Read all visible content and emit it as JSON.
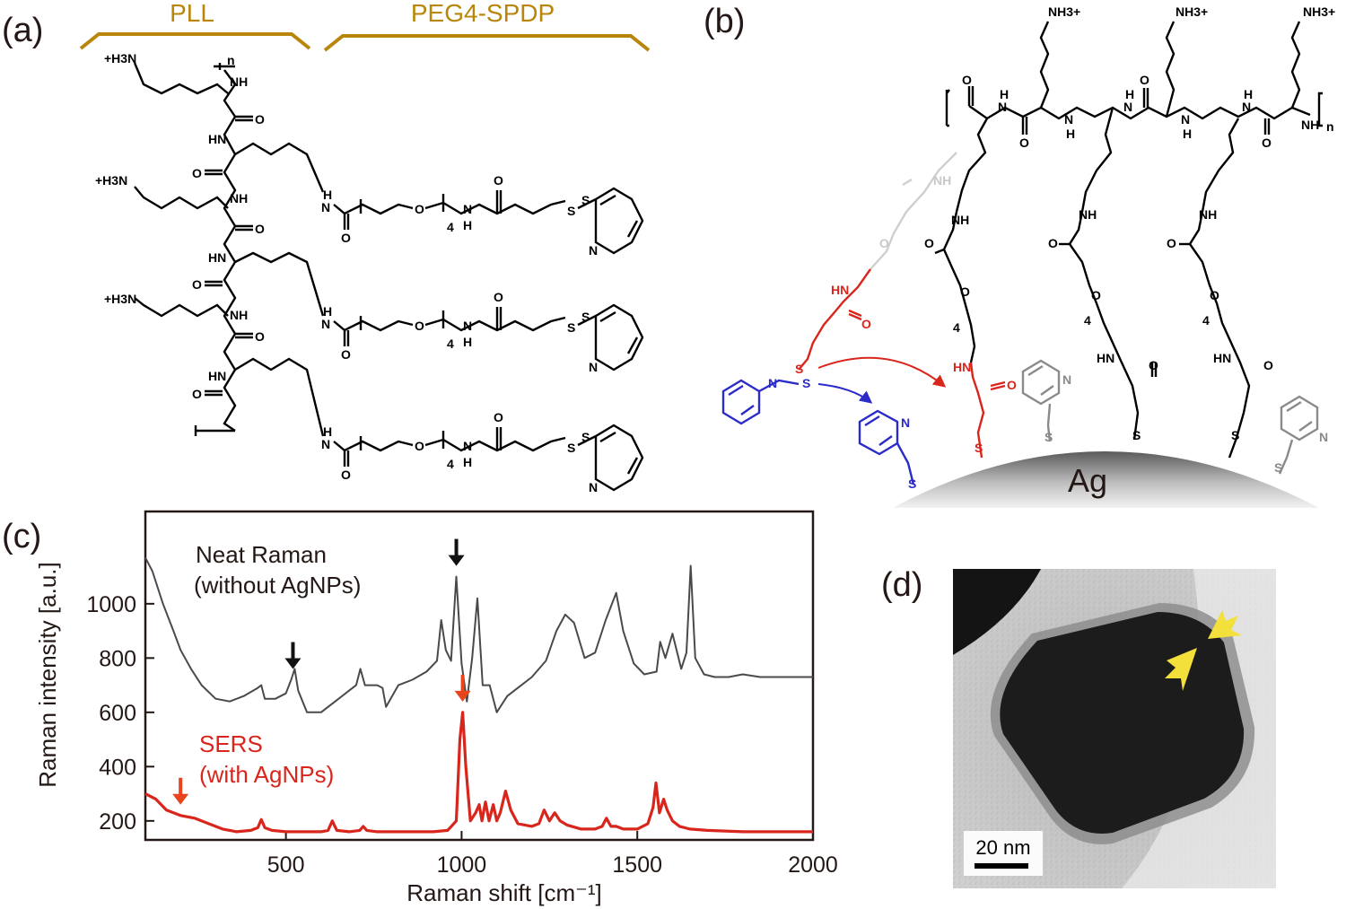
{
  "panels": {
    "a": {
      "label": "(a)",
      "bracket_left": "PLL",
      "bracket_right": "PEG4-SPDP",
      "chem_labels": {
        "nh3": "+H3N",
        "nh": "NH",
        "hn": "HN",
        "o": "O",
        "n_sub": "n",
        "h": "H",
        "n": "N",
        "s": "S",
        "four": "4"
      }
    },
    "b": {
      "label": "(b)",
      "chem_labels": {
        "nh3": "NH3+",
        "hn": "HN",
        "nh": "NH",
        "o": "O",
        "s": "S",
        "n": "N",
        "h": "H",
        "four": "4",
        "n_sub": "n"
      },
      "surface_label": "Ag"
    },
    "c": {
      "label": "(c)",
      "annotations": {
        "neat_line1": "Neat Raman",
        "neat_line2": "(without AgNPs)",
        "sers_line1": "SERS",
        "sers_line2": "(with AgNPs)"
      },
      "colors": {
        "neat": "#4a4a4a",
        "sers": "#d9261c",
        "neat_arrow": "#111111",
        "sers_arrow": "#e8451e"
      }
    },
    "d": {
      "label": "(d)",
      "scale_bar": "20 nm",
      "arrow_color": "#f4e03a"
    }
  },
  "chart_data": {
    "type": "line",
    "xlabel": "Raman shift [cm⁻¹]",
    "ylabel": "Raman intensity [a.u.]",
    "xlim": [
      100,
      2000
    ],
    "ylim": [
      130,
      1340
    ],
    "xticks": [
      500,
      1000,
      1500,
      2000
    ],
    "yticks": [
      200,
      400,
      600,
      800,
      1000
    ],
    "grid": false,
    "series": [
      {
        "name": "Neat Raman (without AgNPs)",
        "color": "#4a4a4a",
        "x": [
          100,
          120,
          150,
          180,
          200,
          230,
          260,
          300,
          340,
          380,
          420,
          430,
          440,
          470,
          500,
          515,
          525,
          535,
          560,
          600,
          640,
          680,
          700,
          712,
          725,
          760,
          775,
          785,
          820,
          860,
          900,
          930,
          942,
          955,
          970,
          985,
          1000,
          1015,
          1030,
          1045,
          1060,
          1080,
          1100,
          1130,
          1160,
          1200,
          1240,
          1270,
          1295,
          1320,
          1350,
          1380,
          1410,
          1440,
          1460,
          1490,
          1520,
          1555,
          1565,
          1580,
          1600,
          1625,
          1640,
          1652,
          1665,
          1690,
          1720,
          1760,
          1800,
          1850,
          1900,
          1950,
          2000
        ],
        "y": [
          1170,
          1120,
          1000,
          900,
          830,
          760,
          700,
          650,
          640,
          660,
          690,
          700,
          650,
          650,
          670,
          720,
          760,
          680,
          600,
          600,
          640,
          680,
          700,
          760,
          700,
          700,
          690,
          620,
          700,
          720,
          750,
          790,
          940,
          830,
          790,
          1100,
          780,
          640,
          800,
          1020,
          700,
          700,
          600,
          660,
          690,
          730,
          790,
          900,
          960,
          930,
          800,
          820,
          940,
          1040,
          900,
          780,
          740,
          750,
          860,
          800,
          890,
          760,
          820,
          1140,
          800,
          740,
          730,
          730,
          740,
          730,
          730,
          730,
          730
        ]
      },
      {
        "name": "SERS (with AgNPs)",
        "color": "#d9261c",
        "x": [
          100,
          130,
          160,
          200,
          240,
          280,
          320,
          360,
          400,
          420,
          430,
          440,
          460,
          500,
          560,
          600,
          620,
          632,
          645,
          680,
          710,
          720,
          730,
          760,
          800,
          840,
          880,
          920,
          960,
          985,
          995,
          1003,
          1012,
          1025,
          1040,
          1050,
          1058,
          1068,
          1078,
          1090,
          1100,
          1110,
          1125,
          1140,
          1160,
          1200,
          1220,
          1235,
          1250,
          1265,
          1280,
          1300,
          1340,
          1380,
          1400,
          1412,
          1425,
          1440,
          1460,
          1500,
          1530,
          1545,
          1553,
          1563,
          1575,
          1585,
          1600,
          1620,
          1650,
          1700,
          1800,
          1900,
          2000
        ],
        "y": [
          300,
          280,
          240,
          220,
          210,
          190,
          170,
          160,
          165,
          175,
          205,
          175,
          165,
          160,
          160,
          160,
          165,
          200,
          165,
          160,
          165,
          180,
          165,
          160,
          160,
          160,
          160,
          160,
          165,
          200,
          500,
          600,
          400,
          200,
          230,
          260,
          200,
          270,
          200,
          260,
          200,
          230,
          310,
          240,
          190,
          180,
          190,
          240,
          200,
          230,
          200,
          185,
          170,
          170,
          180,
          210,
          180,
          180,
          170,
          170,
          190,
          250,
          340,
          230,
          280,
          240,
          200,
          180,
          170,
          165,
          160,
          160,
          160
        ]
      }
    ],
    "annotations": [
      {
        "series": "Neat Raman (without AgNPs)",
        "x": 520,
        "marker": "arrow-down"
      },
      {
        "series": "Neat Raman (without AgNPs)",
        "x": 985,
        "marker": "arrow-down"
      },
      {
        "series": "SERS (with AgNPs)",
        "x": 200,
        "marker": "arrow-down"
      },
      {
        "series": "SERS (with AgNPs)",
        "x": 1003,
        "marker": "arrow-down"
      }
    ]
  }
}
